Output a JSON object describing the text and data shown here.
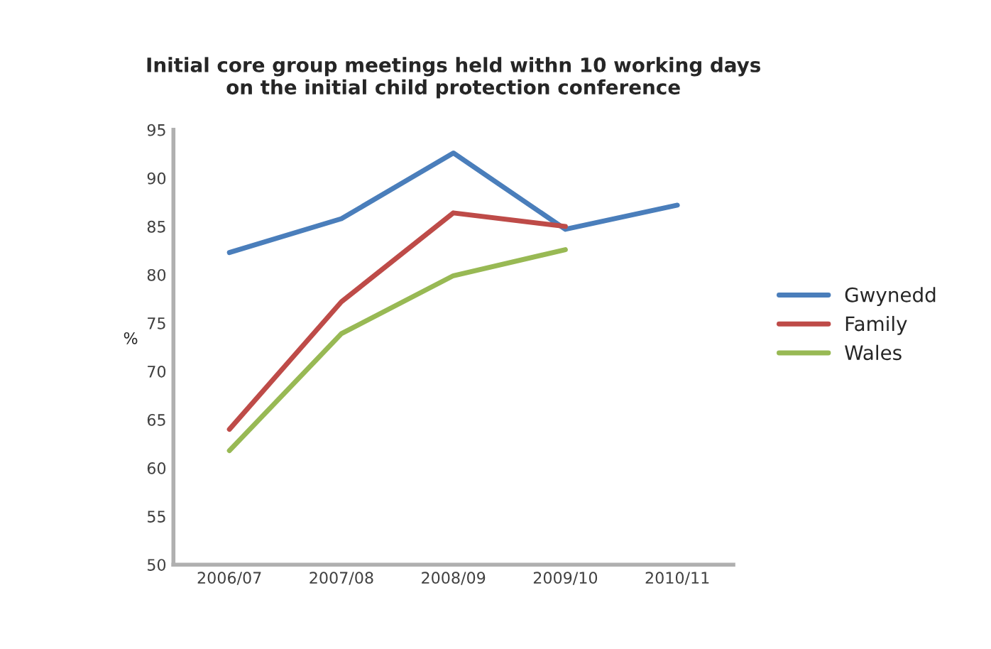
{
  "chart_data": {
    "type": "line",
    "title": "Initial core group meetings held withn 10 working days\non the initial child protection conference",
    "ylabel": "%",
    "categories": [
      "2006/07",
      "2007/08",
      "2008/09",
      "2009/10",
      "2010/11"
    ],
    "series": [
      {
        "name": "Gwynedd",
        "color": "#4a7ebb",
        "values": [
          82.3,
          85.8,
          92.6,
          84.7,
          87.2
        ]
      },
      {
        "name": "Family",
        "color": "#be4b48",
        "values": [
          64,
          77.2,
          86.4,
          85,
          null
        ]
      },
      {
        "name": "Wales",
        "color": "#98b954",
        "values": [
          61.8,
          73.9,
          79.9,
          82.6,
          null
        ]
      }
    ],
    "ylim": [
      50,
      95
    ],
    "yticks": [
      50,
      55,
      60,
      65,
      70,
      75,
      80,
      85,
      90,
      95
    ],
    "grid": false,
    "legend": "right",
    "marker": "none",
    "line_style": "solid"
  }
}
